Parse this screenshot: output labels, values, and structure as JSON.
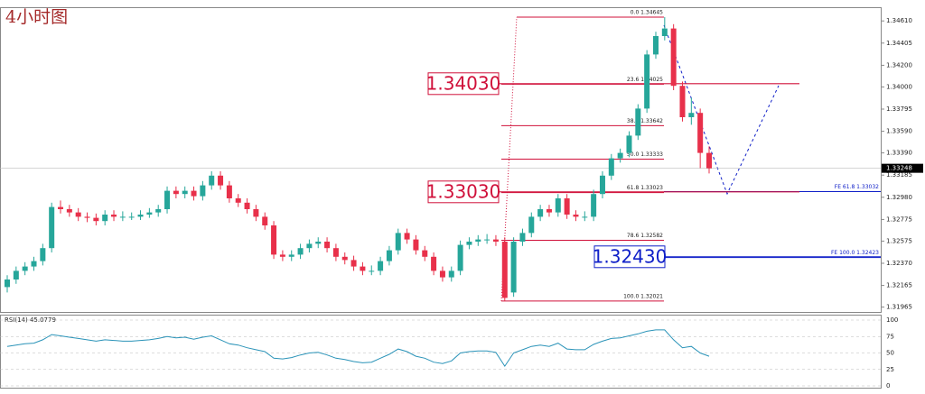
{
  "chart_data": [
    {
      "type": "candlestick",
      "title": "4小时图",
      "up_color": "#26a69a",
      "down_color": "#e8304a",
      "ylim": [
        1.3192,
        1.3472
      ],
      "yticks": [
        {
          "value": 1.3461,
          "label": "1.34610"
        },
        {
          "value": 1.34405,
          "label": "1.34405"
        },
        {
          "value": 1.342,
          "label": "1.34200"
        },
        {
          "value": 1.34,
          "label": "1.34000"
        },
        {
          "value": 1.33795,
          "label": "1.33795"
        },
        {
          "value": 1.3359,
          "label": "1.33590"
        },
        {
          "value": 1.3339,
          "label": "1.33390"
        },
        {
          "value": 1.33185,
          "label": "1.33185"
        },
        {
          "value": 1.3298,
          "label": "1.32980"
        },
        {
          "value": 1.32775,
          "label": "1.32775"
        },
        {
          "value": 1.32575,
          "label": "1.32575"
        },
        {
          "value": 1.3237,
          "label": "1.32370"
        },
        {
          "value": 1.32165,
          "label": "1.32165"
        },
        {
          "value": 1.31965,
          "label": "1.31965"
        }
      ],
      "current_price": {
        "value": 1.33248,
        "label": "1.33248"
      },
      "fib": [
        {
          "value": 1.34645,
          "label": "0.0 1.34645"
        },
        {
          "value": 1.34025,
          "label": "23.6 1.34025"
        },
        {
          "value": 1.33642,
          "label": "38.2 1.33642"
        },
        {
          "value": 1.33333,
          "label": "50.0 1.33333"
        },
        {
          "value": 1.33023,
          "label": "61.8 1.33023"
        },
        {
          "value": 1.32582,
          "label": "78.6 1.32582"
        },
        {
          "value": 1.32021,
          "label": "100.0 1.32021"
        }
      ],
      "fib_color": "#d0103a",
      "expansion": [
        {
          "value": 1.33032,
          "label": "FE 61.8 1.33032"
        },
        {
          "value": 1.32423,
          "label": "FE 100.0 1.32423"
        }
      ],
      "expansion_color": "#1020c8",
      "levels": [
        {
          "value": 1.3403,
          "label": "1.34030",
          "color": "#d0103a"
        },
        {
          "value": 1.3303,
          "label": "1.33030",
          "color": "#d0103a"
        },
        {
          "value": 1.3243,
          "label": "1.32430",
          "color": "#1020c8"
        }
      ],
      "candles": [
        [
          1.3215,
          1.3226,
          1.321,
          1.3222
        ],
        [
          1.3222,
          1.3234,
          1.3218,
          1.323
        ],
        [
          1.323,
          1.3238,
          1.3226,
          1.3234
        ],
        [
          1.3234,
          1.3243,
          1.323,
          1.3239
        ],
        [
          1.3239,
          1.3255,
          1.3235,
          1.3251
        ],
        [
          1.3251,
          1.3293,
          1.3247,
          1.3289
        ],
        [
          1.3289,
          1.3295,
          1.3283,
          1.3287
        ],
        [
          1.3287,
          1.3291,
          1.328,
          1.3284
        ],
        [
          1.3284,
          1.3288,
          1.3276,
          1.328
        ],
        [
          1.328,
          1.3284,
          1.3275,
          1.3279
        ],
        [
          1.3279,
          1.3283,
          1.3272,
          1.3276
        ],
        [
          1.3276,
          1.3286,
          1.3272,
          1.3282
        ],
        [
          1.3282,
          1.3286,
          1.3276,
          1.328
        ],
        [
          1.328,
          1.3285,
          1.3276,
          1.328
        ],
        [
          1.328,
          1.3284,
          1.3277,
          1.328
        ],
        [
          1.328,
          1.3286,
          1.3277,
          1.3282
        ],
        [
          1.3282,
          1.3288,
          1.3279,
          1.3284
        ],
        [
          1.3284,
          1.3291,
          1.328,
          1.3287
        ],
        [
          1.3287,
          1.3308,
          1.3283,
          1.3304
        ],
        [
          1.3304,
          1.3308,
          1.3297,
          1.3301
        ],
        [
          1.3301,
          1.3308,
          1.3297,
          1.3304
        ],
        [
          1.3304,
          1.3308,
          1.3295,
          1.3299
        ],
        [
          1.3299,
          1.3313,
          1.3295,
          1.3309
        ],
        [
          1.3309,
          1.3322,
          1.3305,
          1.3318
        ],
        [
          1.3318,
          1.3322,
          1.3305,
          1.3309
        ],
        [
          1.3309,
          1.3313,
          1.3293,
          1.3297
        ],
        [
          1.3297,
          1.3301,
          1.3289,
          1.3293
        ],
        [
          1.3293,
          1.3297,
          1.3283,
          1.3287
        ],
        [
          1.3287,
          1.3291,
          1.3276,
          1.328
        ],
        [
          1.328,
          1.3284,
          1.3268,
          1.3272
        ],
        [
          1.3272,
          1.3276,
          1.3241,
          1.3245
        ],
        [
          1.3245,
          1.3249,
          1.3239,
          1.3243
        ],
        [
          1.3243,
          1.3249,
          1.3239,
          1.3245
        ],
        [
          1.3245,
          1.3255,
          1.3241,
          1.3251
        ],
        [
          1.3251,
          1.3259,
          1.3247,
          1.3255
        ],
        [
          1.3255,
          1.3261,
          1.3251,
          1.3257
        ],
        [
          1.3257,
          1.3261,
          1.3247,
          1.3251
        ],
        [
          1.3251,
          1.3255,
          1.3239,
          1.3243
        ],
        [
          1.3243,
          1.3247,
          1.3236,
          1.324
        ],
        [
          1.324,
          1.3244,
          1.323,
          1.3234
        ],
        [
          1.3234,
          1.3238,
          1.3226,
          1.323
        ],
        [
          1.323,
          1.3235,
          1.3226,
          1.323
        ],
        [
          1.323,
          1.3243,
          1.3226,
          1.3239
        ],
        [
          1.3239,
          1.3253,
          1.3235,
          1.3249
        ],
        [
          1.3249,
          1.3269,
          1.3245,
          1.3265
        ],
        [
          1.3265,
          1.3269,
          1.3255,
          1.3259
        ],
        [
          1.3259,
          1.3263,
          1.3245,
          1.3249
        ],
        [
          1.3249,
          1.3253,
          1.3239,
          1.3243
        ],
        [
          1.3243,
          1.3247,
          1.3226,
          1.323
        ],
        [
          1.323,
          1.3234,
          1.322,
          1.3224
        ],
        [
          1.3224,
          1.3234,
          1.322,
          1.323
        ],
        [
          1.323,
          1.3258,
          1.3226,
          1.3254
        ],
        [
          1.3254,
          1.3261,
          1.325,
          1.3257
        ],
        [
          1.3257,
          1.3263,
          1.3253,
          1.3259
        ],
        [
          1.3259,
          1.3264,
          1.3255,
          1.3259
        ],
        [
          1.3259,
          1.3263,
          1.3253,
          1.3257
        ],
        [
          1.3257,
          1.3261,
          1.32021,
          1.3205
        ],
        [
          1.321,
          1.3261,
          1.3206,
          1.3257
        ],
        [
          1.3257,
          1.3269,
          1.3253,
          1.3265
        ],
        [
          1.3265,
          1.3284,
          1.3261,
          1.328
        ],
        [
          1.328,
          1.3291,
          1.3276,
          1.3287
        ],
        [
          1.3287,
          1.3291,
          1.328,
          1.3284
        ],
        [
          1.3284,
          1.3301,
          1.328,
          1.3297
        ],
        [
          1.3297,
          1.3301,
          1.3278,
          1.3282
        ],
        [
          1.3282,
          1.3286,
          1.3276,
          1.328
        ],
        [
          1.328,
          1.3285,
          1.3276,
          1.328
        ],
        [
          1.328,
          1.3305,
          1.3276,
          1.3301
        ],
        [
          1.3301,
          1.3322,
          1.3297,
          1.3318
        ],
        [
          1.3318,
          1.3338,
          1.3314,
          1.3334
        ],
        [
          1.3334,
          1.3343,
          1.333,
          1.3339
        ],
        [
          1.3339,
          1.3359,
          1.3335,
          1.3355
        ],
        [
          1.3355,
          1.3384,
          1.3351,
          1.338
        ],
        [
          1.338,
          1.3434,
          1.3376,
          1.343
        ],
        [
          1.343,
          1.3451,
          1.3426,
          1.3447
        ],
        [
          1.3447,
          1.34645,
          1.3443,
          1.3454
        ],
        [
          1.3454,
          1.3458,
          1.3397,
          1.3401
        ],
        [
          1.3401,
          1.3405,
          1.3368,
          1.3372
        ],
        [
          1.3372,
          1.339,
          1.3365,
          1.3376
        ],
        [
          1.3376,
          1.338,
          1.3325,
          1.3339
        ],
        [
          1.3339,
          1.3345,
          1.332,
          1.33248
        ]
      ]
    },
    {
      "type": "line",
      "title": "RSI(14) 45.0779",
      "color": "#2a93b8",
      "ylim": [
        0,
        100
      ],
      "yticks": [
        100,
        75,
        50,
        25,
        0
      ],
      "values": [
        60,
        62,
        64,
        65,
        70,
        78,
        76,
        74,
        72,
        70,
        68,
        70,
        69,
        68,
        68,
        69,
        70,
        72,
        75,
        73,
        74,
        71,
        74,
        76,
        70,
        64,
        62,
        58,
        55,
        52,
        42,
        41,
        43,
        47,
        50,
        51,
        47,
        42,
        40,
        37,
        35,
        36,
        42,
        48,
        56,
        52,
        45,
        42,
        36,
        34,
        38,
        50,
        52,
        53,
        53,
        51,
        30,
        50,
        55,
        60,
        62,
        60,
        65,
        56,
        55,
        55,
        63,
        68,
        72,
        73,
        76,
        79,
        83,
        85,
        85,
        70,
        58,
        60,
        50,
        45.0779
      ]
    }
  ]
}
